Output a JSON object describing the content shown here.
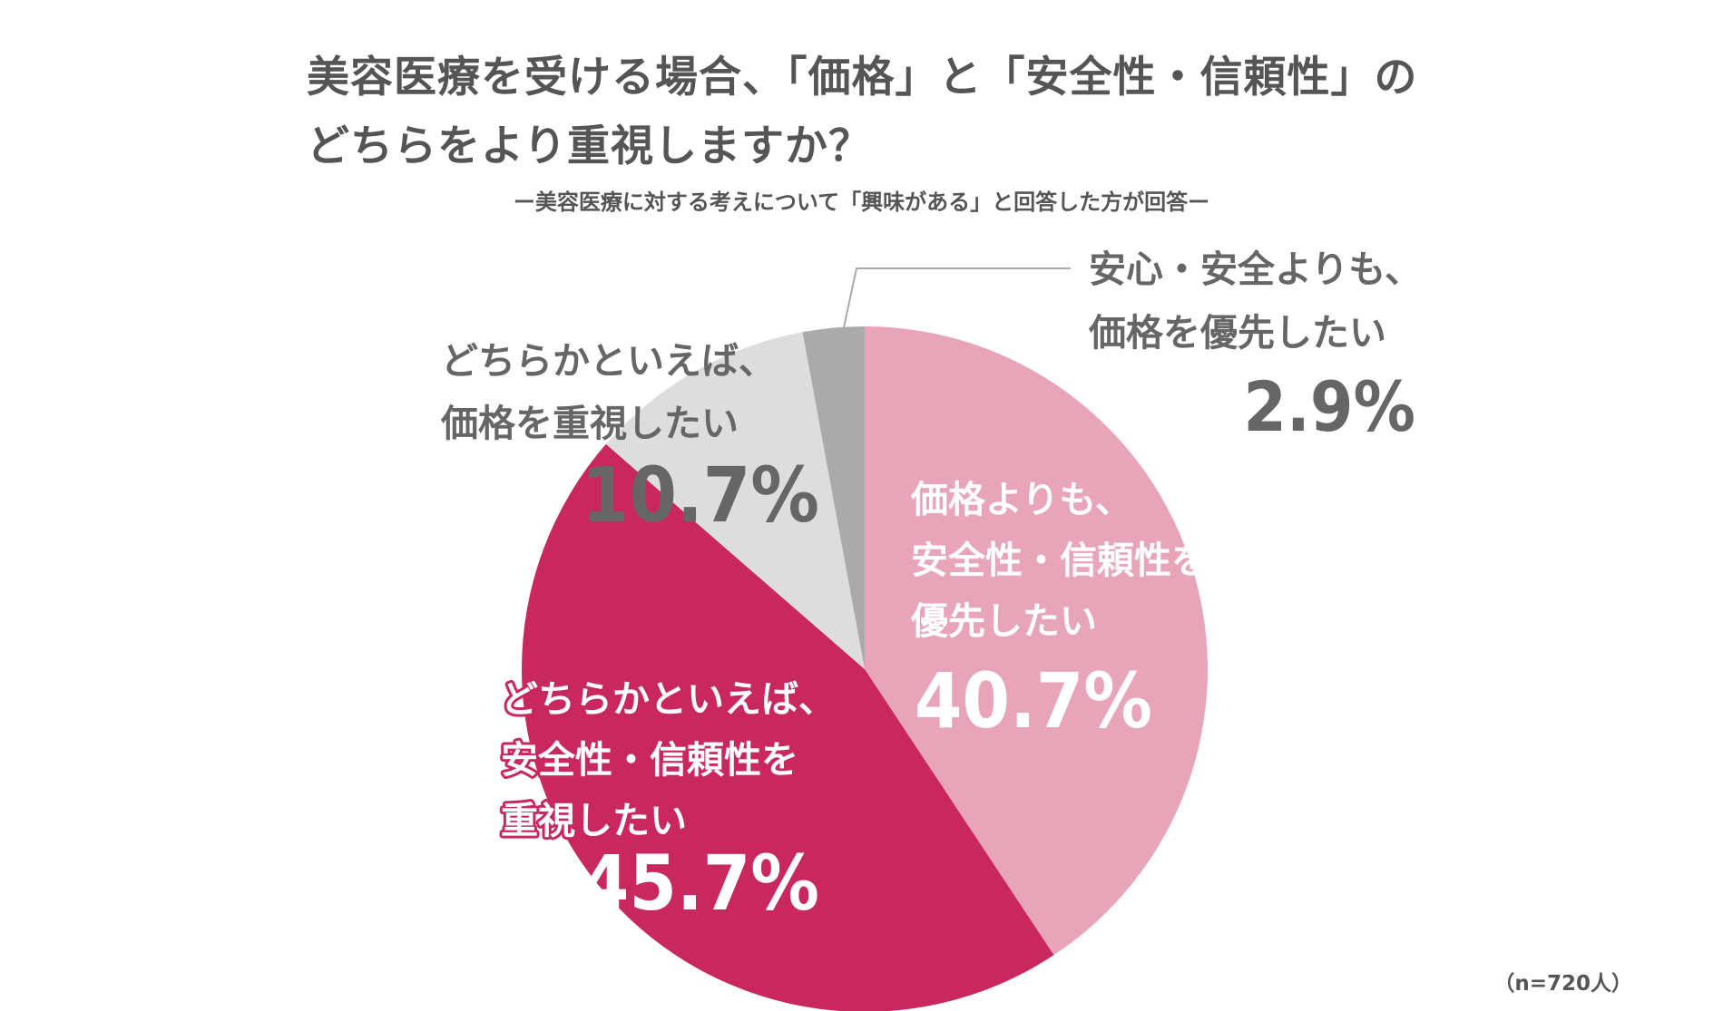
{
  "header": {
    "title_line_1": "美容医療を受ける場合、「価格」と「安全性・信頼性」の",
    "title_line_2": "どちらをより重視しますか？",
    "subtitle": "ー美容医療に対する考えについて「興味がある」と回答した方が回答ー"
  },
  "footer": {
    "sample_size": "（n=720人）"
  },
  "chart_data": {
    "type": "pie",
    "start_angle_deg": 0,
    "direction": "clockwise",
    "unit": "%",
    "slices": [
      {
        "label_lines": [
          "価格よりも、",
          "安全性・信頼性を",
          "優先したい"
        ],
        "value": 40.7,
        "value_label": "40.7%",
        "color": "#E8A4B8",
        "text_color": "#ffffff",
        "label_placement": "inside"
      },
      {
        "label_lines": [
          "どちらかといえば、",
          "安全性・信頼性を",
          "重視したい"
        ],
        "value": 45.7,
        "value_label": "45.7%",
        "color": "#C8285E",
        "text_color": "#ffffff",
        "label_placement": "inside"
      },
      {
        "label_lines": [
          "どちらかといえば、",
          "価格を重視したい"
        ],
        "value": 10.7,
        "value_label": "10.7%",
        "color": "#DDDDDD",
        "text_color": "#666666",
        "label_placement": "outside-left"
      },
      {
        "label_lines": [
          "安心・安全よりも、",
          "価格を優先したい"
        ],
        "value": 2.9,
        "value_label": "2.9%",
        "color": "#AAAAAA",
        "text_color": "#666666",
        "label_placement": "outside-right-with-leader"
      }
    ]
  }
}
